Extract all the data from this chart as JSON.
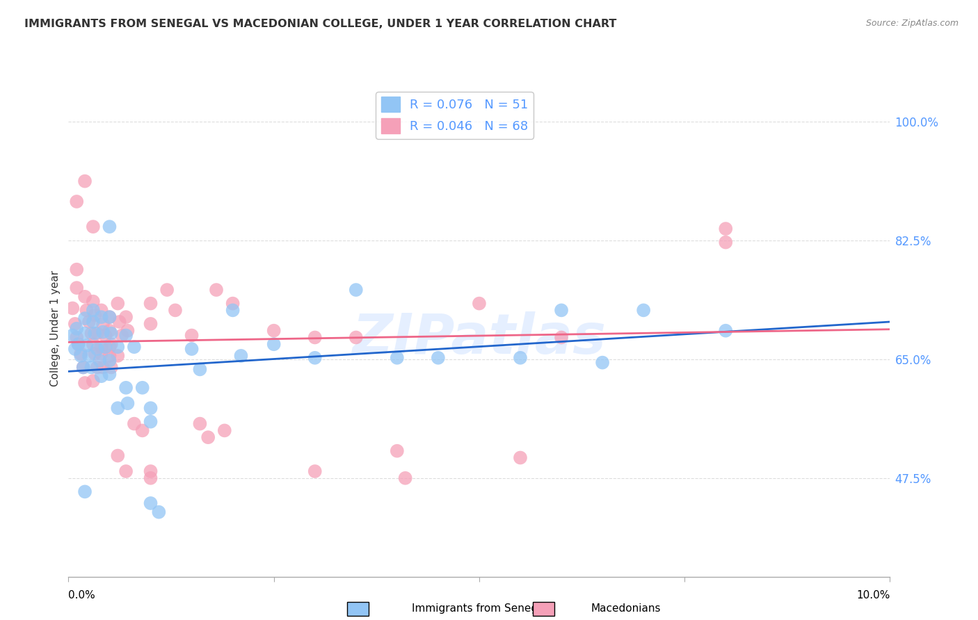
{
  "title": "IMMIGRANTS FROM SENEGAL VS MACEDONIAN COLLEGE, UNDER 1 YEAR CORRELATION CHART",
  "source": "Source: ZipAtlas.com",
  "ylabel": "College, Under 1 year",
  "yticks": [
    "47.5%",
    "65.0%",
    "82.5%",
    "100.0%"
  ],
  "ytick_vals": [
    0.475,
    0.65,
    0.825,
    1.0
  ],
  "xmin": 0.0,
  "xmax": 0.1,
  "ymin": 0.33,
  "ymax": 1.06,
  "legend_label1": "R = 0.076   N = 51",
  "legend_label2": "R = 0.046   N = 68",
  "color_blue": "#92C5F5",
  "color_pink": "#F5A0B8",
  "trendline_blue": "#2266CC",
  "trendline_pink": "#EE6688",
  "blue_points": [
    [
      0.0005,
      0.685
    ],
    [
      0.0008,
      0.665
    ],
    [
      0.001,
      0.695
    ],
    [
      0.0012,
      0.672
    ],
    [
      0.0015,
      0.655
    ],
    [
      0.0018,
      0.638
    ],
    [
      0.002,
      0.71
    ],
    [
      0.002,
      0.688
    ],
    [
      0.0022,
      0.67
    ],
    [
      0.0025,
      0.655
    ],
    [
      0.0028,
      0.638
    ],
    [
      0.003,
      0.722
    ],
    [
      0.003,
      0.705
    ],
    [
      0.0032,
      0.688
    ],
    [
      0.0035,
      0.665
    ],
    [
      0.0038,
      0.648
    ],
    [
      0.004,
      0.625
    ],
    [
      0.004,
      0.712
    ],
    [
      0.0042,
      0.69
    ],
    [
      0.0045,
      0.668
    ],
    [
      0.005,
      0.648
    ],
    [
      0.005,
      0.628
    ],
    [
      0.005,
      0.845
    ],
    [
      0.005,
      0.712
    ],
    [
      0.0052,
      0.688
    ],
    [
      0.006,
      0.668
    ],
    [
      0.006,
      0.578
    ],
    [
      0.007,
      0.685
    ],
    [
      0.007,
      0.608
    ],
    [
      0.0072,
      0.585
    ],
    [
      0.008,
      0.668
    ],
    [
      0.009,
      0.608
    ],
    [
      0.01,
      0.578
    ],
    [
      0.01,
      0.558
    ],
    [
      0.01,
      0.438
    ],
    [
      0.011,
      0.425
    ],
    [
      0.015,
      0.665
    ],
    [
      0.016,
      0.635
    ],
    [
      0.02,
      0.722
    ],
    [
      0.021,
      0.655
    ],
    [
      0.025,
      0.672
    ],
    [
      0.03,
      0.652
    ],
    [
      0.035,
      0.752
    ],
    [
      0.04,
      0.652
    ],
    [
      0.045,
      0.652
    ],
    [
      0.055,
      0.652
    ],
    [
      0.06,
      0.722
    ],
    [
      0.065,
      0.645
    ],
    [
      0.07,
      0.722
    ],
    [
      0.08,
      0.692
    ],
    [
      0.002,
      0.455
    ]
  ],
  "pink_points": [
    [
      0.0005,
      0.725
    ],
    [
      0.0008,
      0.702
    ],
    [
      0.001,
      0.682
    ],
    [
      0.0012,
      0.672
    ],
    [
      0.0015,
      0.658
    ],
    [
      0.0018,
      0.638
    ],
    [
      0.002,
      0.912
    ],
    [
      0.002,
      0.742
    ],
    [
      0.0022,
      0.722
    ],
    [
      0.0025,
      0.705
    ],
    [
      0.0028,
      0.688
    ],
    [
      0.003,
      0.672
    ],
    [
      0.0032,
      0.658
    ],
    [
      0.0035,
      0.638
    ],
    [
      0.003,
      0.845
    ],
    [
      0.003,
      0.735
    ],
    [
      0.0032,
      0.715
    ],
    [
      0.0035,
      0.688
    ],
    [
      0.004,
      0.668
    ],
    [
      0.004,
      0.658
    ],
    [
      0.0042,
      0.638
    ],
    [
      0.004,
      0.722
    ],
    [
      0.0042,
      0.702
    ],
    [
      0.0045,
      0.685
    ],
    [
      0.005,
      0.668
    ],
    [
      0.005,
      0.655
    ],
    [
      0.0052,
      0.638
    ],
    [
      0.005,
      0.712
    ],
    [
      0.005,
      0.692
    ],
    [
      0.0052,
      0.672
    ],
    [
      0.006,
      0.655
    ],
    [
      0.006,
      0.732
    ],
    [
      0.0062,
      0.705
    ],
    [
      0.0065,
      0.685
    ],
    [
      0.006,
      0.508
    ],
    [
      0.007,
      0.712
    ],
    [
      0.0072,
      0.692
    ],
    [
      0.007,
      0.485
    ],
    [
      0.008,
      0.555
    ],
    [
      0.009,
      0.545
    ],
    [
      0.01,
      0.732
    ],
    [
      0.01,
      0.702
    ],
    [
      0.01,
      0.485
    ],
    [
      0.01,
      0.475
    ],
    [
      0.012,
      0.752
    ],
    [
      0.013,
      0.722
    ],
    [
      0.015,
      0.685
    ],
    [
      0.016,
      0.555
    ],
    [
      0.017,
      0.535
    ],
    [
      0.018,
      0.752
    ],
    [
      0.019,
      0.545
    ],
    [
      0.02,
      0.732
    ],
    [
      0.025,
      0.692
    ],
    [
      0.03,
      0.682
    ],
    [
      0.03,
      0.485
    ],
    [
      0.035,
      0.682
    ],
    [
      0.04,
      0.515
    ],
    [
      0.041,
      0.475
    ],
    [
      0.05,
      0.732
    ],
    [
      0.055,
      0.505
    ],
    [
      0.06,
      0.682
    ],
    [
      0.08,
      0.842
    ],
    [
      0.08,
      0.822
    ],
    [
      0.001,
      0.882
    ],
    [
      0.001,
      0.782
    ],
    [
      0.001,
      0.755
    ],
    [
      0.002,
      0.615
    ],
    [
      0.003,
      0.618
    ]
  ],
  "blue_trend_x": [
    0.0,
    0.1
  ],
  "blue_trend_y": [
    0.632,
    0.705
  ],
  "pink_trend_x": [
    0.0,
    0.1
  ],
  "pink_trend_y": [
    0.675,
    0.694
  ],
  "watermark": "ZIPatlas",
  "bg_color": "#FFFFFF",
  "grid_color": "#DDDDDD",
  "title_color": "#333333",
  "source_color": "#888888",
  "tick_color": "#5599FF",
  "ylabel_color": "#333333"
}
